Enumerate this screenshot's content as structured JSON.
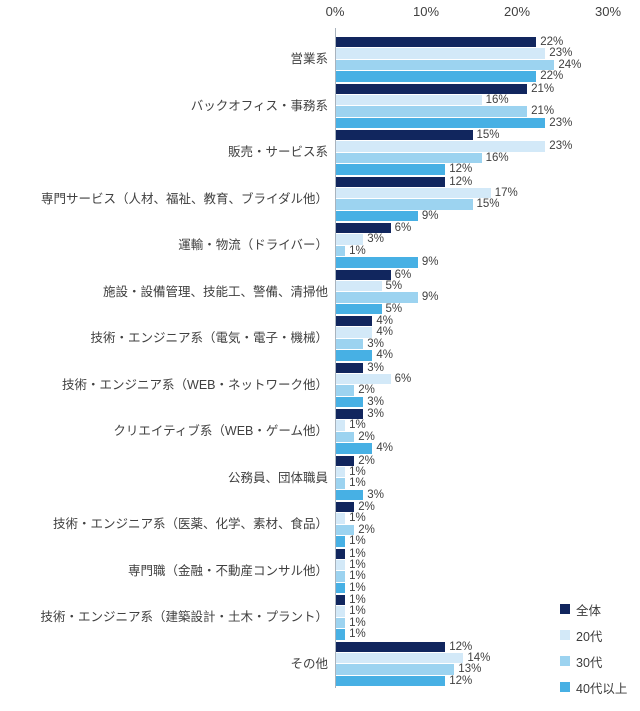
{
  "chart_data": {
    "type": "bar",
    "orientation": "horizontal",
    "title": "",
    "xlabel": "",
    "ylabel": "",
    "grid": false,
    "value_suffix": "%",
    "x_axis": {
      "ticks": [
        "0%",
        "10%",
        "20%",
        "30%"
      ],
      "min": 0,
      "max": 30
    },
    "legend_position": "bottom-right",
    "categories": [
      "営業系",
      "バックオフィス・事務系",
      "販売・サービス系",
      "専門サービス（人材、福祉、教育、ブライダル他）",
      "運輸・物流（ドライバー）",
      "施設・設備管理、技能工、警備、清掃他",
      "技術・エンジニア系（電気・電子・機械）",
      "技術・エンジニア系（WEB・ネットワーク他）",
      "クリエイティブ系（WEB・ゲーム他）",
      "公務員、団体職員",
      "技術・エンジニア系（医薬、化学、素材、食品）",
      "専門職（金融・不動産コンサル他）",
      "技術・エンジニア系（建築設計・土木・プラント）",
      "その他"
    ],
    "series": [
      {
        "name": "全体",
        "color": "#11265e",
        "values": [
          22,
          21,
          15,
          12,
          6,
          6,
          4,
          3,
          3,
          2,
          2,
          1,
          1,
          12
        ]
      },
      {
        "name": "20代",
        "color": "#d3e9f8",
        "values": [
          23,
          16,
          23,
          17,
          3,
          5,
          4,
          6,
          1,
          1,
          1,
          1,
          1,
          14
        ]
      },
      {
        "name": "30代",
        "color": "#9cd3f0",
        "values": [
          24,
          21,
          16,
          15,
          1,
          9,
          3,
          2,
          2,
          1,
          2,
          1,
          1,
          13
        ]
      },
      {
        "name": "40代以上",
        "color": "#47b0e4",
        "values": [
          22,
          23,
          12,
          9,
          9,
          5,
          4,
          3,
          4,
          3,
          1,
          1,
          1,
          12
        ]
      }
    ],
    "colors": {
      "axis_line": "#a9b3bd",
      "text": "#404040",
      "background": "#ffffff"
    }
  }
}
